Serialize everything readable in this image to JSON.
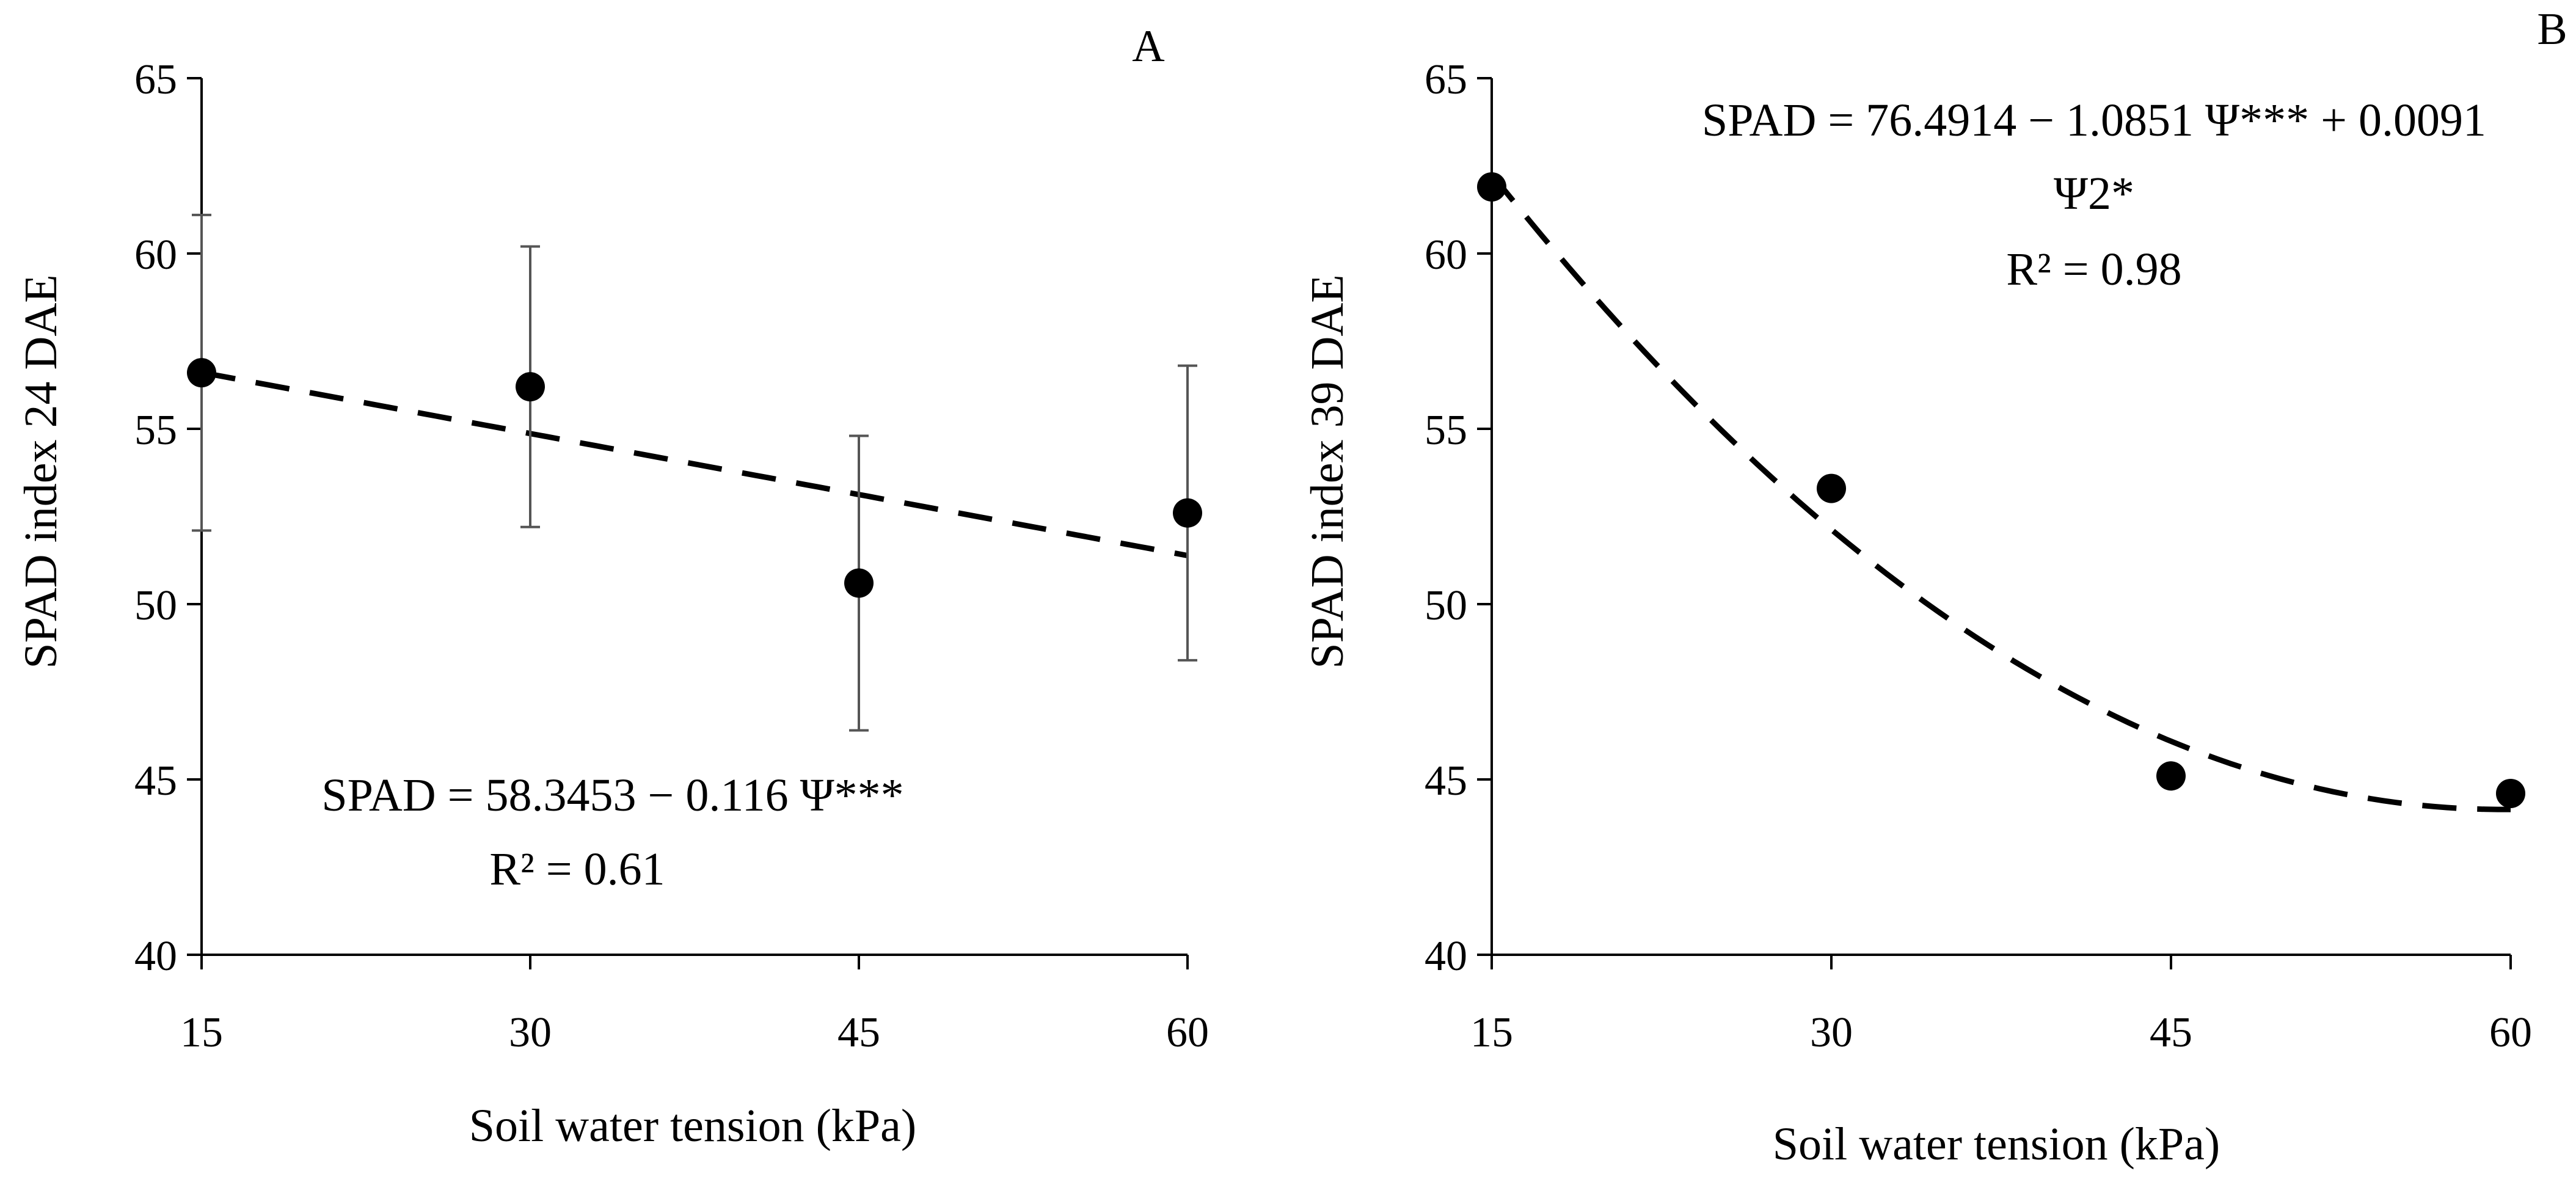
{
  "chart_data": [
    {
      "type": "scatter",
      "panel_label": "A",
      "xlabel": "Soil water tension (kPa)",
      "ylabel": "SPAD index 24 DAE",
      "xlim": [
        15,
        60
      ],
      "ylim": [
        40,
        65
      ],
      "x_ticks": [
        "15",
        "30",
        "45",
        "60"
      ],
      "y_ticks": [
        "40",
        "45",
        "50",
        "55",
        "60",
        "65"
      ],
      "x": [
        15,
        30,
        45,
        60
      ],
      "y": [
        56.6,
        56.2,
        50.6,
        52.6
      ],
      "error": [
        4.5,
        4.0,
        4.2,
        4.2
      ],
      "fit": {
        "kind": "linear",
        "a": 58.3453,
        "b": -0.116
      },
      "equation_lines": [
        "SPAD = 58.3453 − 0.116 Ψ***",
        "R² = 0.61"
      ]
    },
    {
      "type": "scatter",
      "panel_label": "B",
      "xlabel": "Soil water tension (kPa)",
      "ylabel": "SPAD index 39 DAE",
      "xlim": [
        15,
        60
      ],
      "ylim": [
        40,
        65
      ],
      "x_ticks": [
        "15",
        "30",
        "45",
        "60"
      ],
      "y_ticks": [
        "40",
        "45",
        "50",
        "55",
        "60",
        "65"
      ],
      "x": [
        15,
        30,
        45,
        60
      ],
      "y": [
        61.9,
        53.3,
        45.1,
        44.6
      ],
      "fit": {
        "kind": "quadratic",
        "a": 76.4914,
        "b": -1.0851,
        "c": 0.0091
      },
      "equation_lines": [
        "SPAD = 76.4914 − 1.0851 Ψ*** + 0.0091",
        "Ψ2*",
        "R² = 0.98"
      ]
    }
  ]
}
